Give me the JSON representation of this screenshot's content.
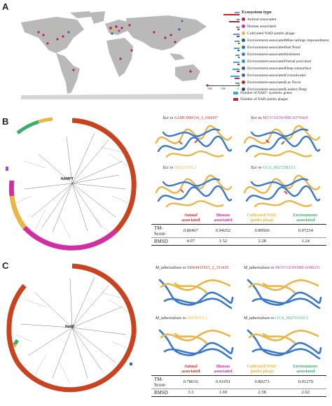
{
  "panels": {
    "a": "A",
    "b": "B",
    "c": "C"
  },
  "panel_a": {
    "legend_title": "Ecosystem type",
    "legend": [
      {
        "label": "Animal associated",
        "color": "#c81e3c"
      },
      {
        "label": "Human associated",
        "color": "#d12ea3"
      },
      {
        "label": "Cultivated NAD-jumbo phage",
        "color": "#e8b64a"
      },
      {
        "label": "Environment-associatedMine tailings impoundment",
        "color": "#1b5e8a"
      },
      {
        "label": "Environment-associatedSalt Pond",
        "color": "#2c6fa6"
      },
      {
        "label": "Environment-associatedSediment",
        "color": "#3f7fb5"
      },
      {
        "label": "Environment-associatedVernal pool tend",
        "color": "#4a88be"
      },
      {
        "label": "Environment-associatedDeep subsurface",
        "color": "#2b5d91"
      },
      {
        "label": "Environment-associatedGroundwater",
        "color": "#356ba3"
      },
      {
        "label": "Environment-associatedLac Pavin",
        "color": "#c8202f"
      },
      {
        "label": "Environment-associatedLaodort Deep",
        "color": "#1f4f7a"
      }
    ],
    "axis_ticks": [
      "3000",
      "1000",
      "0"
    ],
    "bar_legend": [
      {
        "label": "Number of NAD⁺ synthetic genes",
        "color": "#3aa5de"
      },
      {
        "label": "Number of NAD-jumbo phages",
        "color": "#c8202f"
      }
    ]
  },
  "panel_b": {
    "tree_label": "NAMPT",
    "structures": [
      {
        "prefix": "Xcc",
        "vs": " vs ",
        "id": "SAMC000334_1_696697",
        "color": "#d8302c"
      },
      {
        "prefix": "Xcc",
        "vs": " vs ",
        "id": "MGV-GENOME-0379424",
        "color": "#d12ea3"
      },
      {
        "prefix": "Xcc",
        "vs": " vs ",
        "id": "HQ317393.2",
        "color": "#e8b64a"
      },
      {
        "prefix": "Xcc",
        "vs": " vs ",
        "id": "GCA_902725815.1",
        "color": "#3aaf6b"
      }
    ],
    "table": {
      "headers": [
        "Animal associated",
        "Human associated",
        "Cultivated NAD-jumbo phage",
        "Environment-associated"
      ],
      "header_colors": [
        "#d8302c",
        "#d12ea3",
        "#e8b64a",
        "#3aaf6b"
      ],
      "rows": [
        {
          "label": "TM-Score",
          "values": [
            "0.80467",
            "0.94252",
            "0.89566",
            "0.97234"
          ]
        },
        {
          "label": "RMSD",
          "values": [
            "4.07",
            "1.52",
            "2.28",
            "1.24"
          ]
        }
      ]
    }
  },
  "panel_c": {
    "tree_label": "NadD",
    "structures": [
      {
        "prefix": "M_tuberculosis",
        "vs": " vs ",
        "id": "SRR4435563_2_353420",
        "color": "#d8302c"
      },
      {
        "prefix": "M_tuberculosis",
        "vs": " vs ",
        "id": "MGV-GENOME-0380251",
        "color": "#d12ea3"
      },
      {
        "prefix": "M_tuberculosis",
        "vs": " vs ",
        "id": "JN638751.1",
        "color": "#e8b64a"
      },
      {
        "prefix": "M_tuberculosis",
        "vs": " vs ",
        "id": "GCA_902731165.1",
        "color": "#3aaf6b"
      }
    ],
    "table": {
      "headers": [
        "Animal associated",
        "Human associated",
        "Cultivated NAD-jumbo phage",
        "Environment-associated"
      ],
      "header_colors": [
        "#d8302c",
        "#d12ea3",
        "#e8b64a",
        "#3aaf6b"
      ],
      "rows": [
        {
          "label": "TM-Score",
          "values": [
            "0.78616",
            "0.91051",
            "0.80273",
            "0.91279"
          ]
        },
        {
          "label": "RMSD",
          "values": [
            "3.3",
            "1.69",
            "2.58",
            "2.02"
          ]
        }
      ]
    }
  }
}
